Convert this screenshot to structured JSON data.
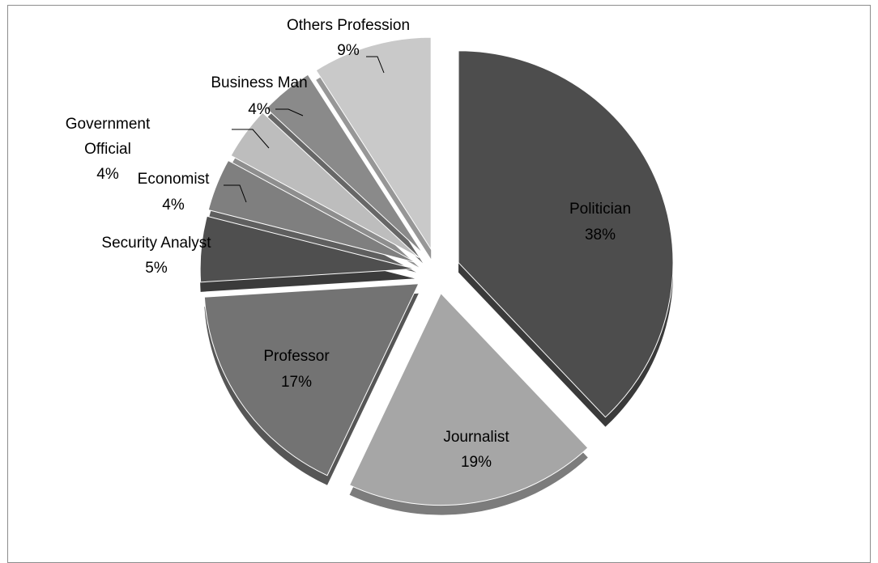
{
  "chart_data": {
    "type": "pie",
    "title": "",
    "slices": [
      {
        "label": "Politician",
        "pct_label": "38%",
        "value": 38,
        "color": "#4d4d4d",
        "side": "#3a3a3a"
      },
      {
        "label": "Journalist",
        "pct_label": "19%",
        "value": 19,
        "color": "#a6a6a6",
        "side": "#7c7c7c"
      },
      {
        "label": "Professor",
        "pct_label": "17%",
        "value": 17,
        "color": "#737373",
        "side": "#565656"
      },
      {
        "label": "Security Analyst",
        "pct_label": "5%",
        "value": 5,
        "color": "#4f4f4f",
        "side": "#3b3b3b"
      },
      {
        "label": "Economist",
        "pct_label": "4%",
        "value": 4,
        "color": "#7f7f7f",
        "side": "#5f5f5f"
      },
      {
        "label": "Government Official",
        "pct_label": "4%",
        "value": 4,
        "color": "#bdbdbd",
        "side": "#8e8e8e"
      },
      {
        "label": "Business Man",
        "pct_label": "4%",
        "value": 4,
        "color": "#8a8a8a",
        "side": "#676767"
      },
      {
        "label": "Others Profession",
        "pct_label": "9%",
        "value": 9,
        "color": "#c9c9c9",
        "side": "#979797"
      }
    ],
    "legend": "none",
    "labels": {
      "politician_name": "Politician",
      "politician_pct": "38%",
      "journalist_name": "Journalist",
      "journalist_pct": "19%",
      "professor_name": "Professor",
      "professor_pct": "17%",
      "security_name": "Security Analyst",
      "security_pct": "5%",
      "economist_name": "Economist",
      "economist_pct": "4%",
      "government_name_1": "Government",
      "government_name_2": "Official",
      "government_pct": "4%",
      "business_name": "Business Man",
      "business_pct": "4%",
      "others_name": "Others Profession",
      "others_pct": "9%"
    }
  }
}
